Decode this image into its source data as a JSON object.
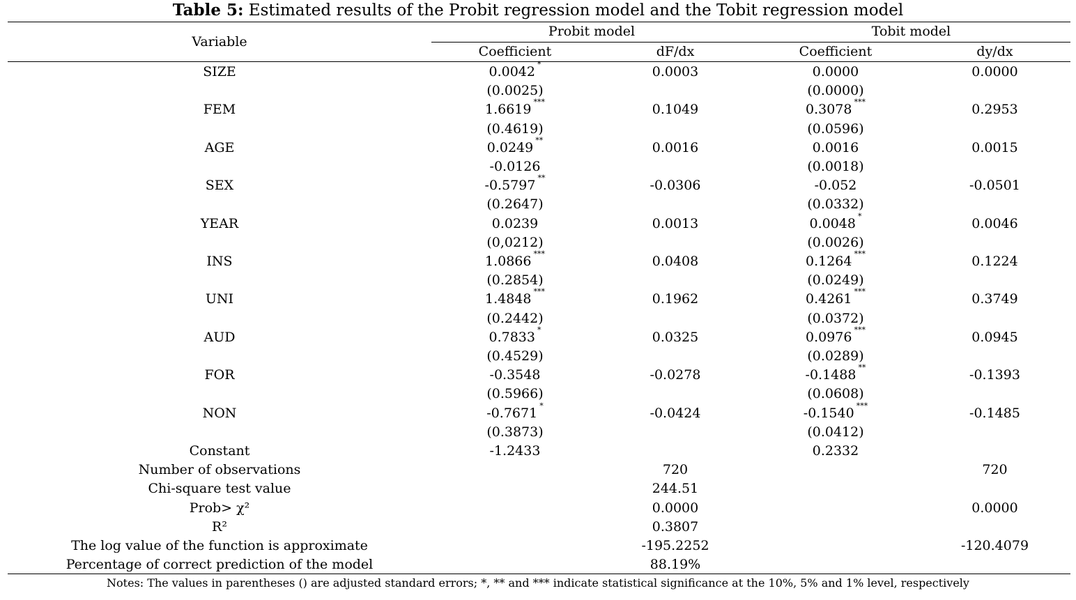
{
  "title": {
    "label": "Table 5:",
    "text": " Estimated results of the Probit regression model and the Tobit regression model"
  },
  "header": {
    "variable": "Variable",
    "probit": "Probit model",
    "tobit": "Tobit model",
    "probit_coef": "Coefficient",
    "probit_dfdx": "dF/dx",
    "tobit_coef": "Coefficient",
    "tobit_dydx": "dy/dx"
  },
  "rows": [
    {
      "var": "SIZE",
      "pc": "0.0042",
      "pc_sig": "*",
      "pd": "0.0003",
      "tc": "0.0000",
      "tc_sig": "",
      "td": "0.0000",
      "pse": "(0.0025)",
      "tse": "(0.0000)"
    },
    {
      "var": "FEM",
      "pc": "1.6619",
      "pc_sig": "***",
      "pd": "0.1049",
      "tc": "0.3078",
      "tc_sig": "***",
      "td": "0.2953",
      "pse": "(0.4619)",
      "tse": "(0.0596)"
    },
    {
      "var": "AGE",
      "pc": "0.0249",
      "pc_sig": "**",
      "pd": "0.0016",
      "tc": "0.0016",
      "tc_sig": "",
      "td": "0.0015",
      "pse": "-0.0126",
      "tse": "(0.0018)"
    },
    {
      "var": "SEX",
      "pc": "-0.5797",
      "pc_sig": "**",
      "pd": "-0.0306",
      "tc": "-0.052",
      "tc_sig": "",
      "td": "-0.0501",
      "pse": "(0.2647)",
      "tse": "(0.0332)"
    },
    {
      "var": "YEAR",
      "pc": "0.0239",
      "pc_sig": "",
      "pd": "0.0013",
      "tc": "0.0048",
      "tc_sig": "*",
      "td": "0.0046",
      "pse": "(0,0212)",
      "tse": "(0.0026)"
    },
    {
      "var": "INS",
      "pc": "1.0866",
      "pc_sig": "***",
      "pd": "0.0408",
      "tc": "0.1264",
      "tc_sig": "***",
      "td": "0.1224",
      "pse": "(0.2854)",
      "tse": "(0.0249)"
    },
    {
      "var": "UNI",
      "pc": "1.4848",
      "pc_sig": "***",
      "pd": "0.1962",
      "tc": "0.4261",
      "tc_sig": "***",
      "td": "0.3749",
      "pse": "(0.2442)",
      "tse": "(0.0372)"
    },
    {
      "var": "AUD",
      "pc": "0.7833",
      "pc_sig": "*",
      "pd": "0.0325",
      "tc": "0.0976",
      "tc_sig": "***",
      "td": "0.0945",
      "pse": "(0.4529)",
      "tse": "(0.0289)"
    },
    {
      "var": "FOR",
      "pc": "-0.3548",
      "pc_sig": "",
      "pd": "-0.0278",
      "tc": "-0.1488",
      "tc_sig": "**",
      "td": "-0.1393",
      "pse": "(0.5966)",
      "tse": "(0.0608)"
    },
    {
      "var": "NON",
      "pc": "-0.7671",
      "pc_sig": "*",
      "pd": "-0.0424",
      "tc": "-0.1540",
      "tc_sig": "***",
      "td": "-0.1485",
      "pse": "(0.3873)",
      "tse": "(0.0412)"
    }
  ],
  "constant": {
    "var": "Constant",
    "pc": "-1.2433",
    "tc": "0.2332"
  },
  "stats": [
    {
      "var": "Number of observations",
      "probit": "720",
      "tobit": "720"
    },
    {
      "var": "Chi-square test value",
      "probit": "244.51",
      "tobit": ""
    },
    {
      "var": "Prob> χ²",
      "probit": "0.0000",
      "tobit": "0.0000"
    },
    {
      "var": "R²",
      "probit": "0.3807",
      "tobit": ""
    },
    {
      "var": "The log value of the function is approximate",
      "probit": "-195.2252",
      "tobit": "-120.4079"
    },
    {
      "var": "Percentage of correct prediction of the model",
      "probit": "88.19%",
      "tobit": ""
    }
  ],
  "notes": "Notes: The values in parentheses () are adjusted standard errors; *, ** and *** indicate statistical significance at the 10%, 5% and 1% level, respectively"
}
